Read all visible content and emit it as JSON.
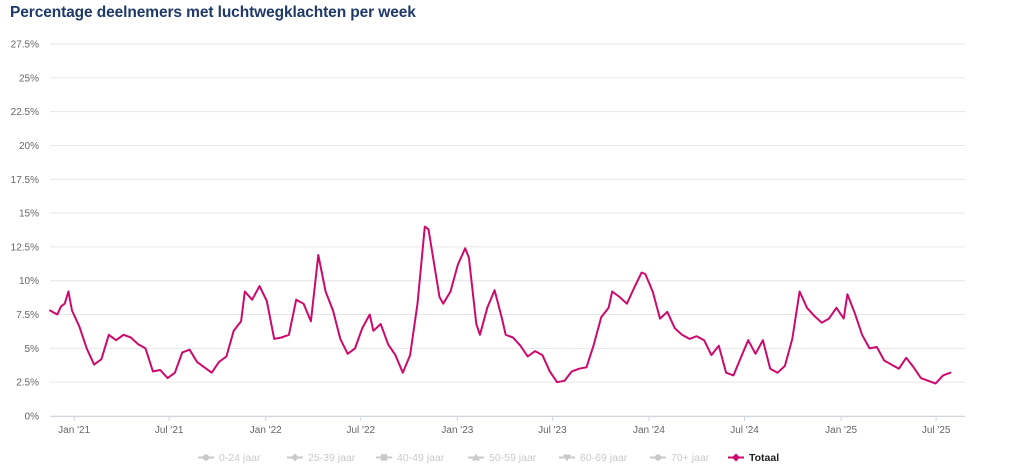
{
  "title": "Percentage deelnemers met luchtwegklachten per week",
  "colors": {
    "line": "#cc0a6e",
    "grid": "#e6e6e6",
    "axis_text": "#666666",
    "legend_inactive": "#c9c9c9",
    "legend_active": "#222222"
  },
  "legend": [
    {
      "label": "0-24 jaar",
      "marker": "circle",
      "active": false
    },
    {
      "label": "25-39 jaar",
      "marker": "diamond",
      "active": false
    },
    {
      "label": "40-49 jaar",
      "marker": "square",
      "active": false
    },
    {
      "label": "50-59 jaar",
      "marker": "triangle",
      "active": false
    },
    {
      "label": "60-69 jaar",
      "marker": "triangle-down",
      "active": false
    },
    {
      "label": "70+ jaar",
      "marker": "circle",
      "active": false
    },
    {
      "label": "Totaal",
      "marker": "diamond",
      "active": true
    }
  ],
  "chart_data": {
    "type": "line",
    "title": "Percentage deelnemers met luchtwegklachten per week",
    "xlabel": "",
    "ylabel": "",
    "ylim": [
      0,
      27.5
    ],
    "xlim": [
      "2020-11-16",
      "2025-08-25"
    ],
    "y_ticks": [
      "0%",
      "2.5%",
      "5%",
      "7.5%",
      "10%",
      "12.5%",
      "15%",
      "17.5%",
      "20%",
      "22.5%",
      "25%",
      "27.5%"
    ],
    "x_ticks": [
      {
        "label": "Jan '21",
        "date": "2021-01-01"
      },
      {
        "label": "Jul '21",
        "date": "2021-07-01"
      },
      {
        "label": "Jan '22",
        "date": "2022-01-01"
      },
      {
        "label": "Jul '22",
        "date": "2022-07-01"
      },
      {
        "label": "Jan '23",
        "date": "2023-01-01"
      },
      {
        "label": "Jul '23",
        "date": "2023-07-01"
      },
      {
        "label": "Jan '24",
        "date": "2024-01-01"
      },
      {
        "label": "Jul '24",
        "date": "2024-07-01"
      },
      {
        "label": "Jan '25",
        "date": "2025-01-01"
      },
      {
        "label": "Jul '25",
        "date": "2025-07-01"
      }
    ],
    "grid": true,
    "legend_position": "bottom",
    "series": [
      {
        "name": "Totaal",
        "points": [
          [
            "2020-11-16",
            7.8
          ],
          [
            "2020-11-30",
            7.5
          ],
          [
            "2020-12-07",
            8.1
          ],
          [
            "2020-12-14",
            8.3
          ],
          [
            "2020-12-21",
            9.2
          ],
          [
            "2020-12-28",
            7.8
          ],
          [
            "2021-01-11",
            6.6
          ],
          [
            "2021-01-25",
            5.0
          ],
          [
            "2021-02-08",
            3.8
          ],
          [
            "2021-02-22",
            4.2
          ],
          [
            "2021-03-08",
            6.0
          ],
          [
            "2021-03-22",
            5.6
          ],
          [
            "2021-04-05",
            6.0
          ],
          [
            "2021-04-19",
            5.8
          ],
          [
            "2021-05-03",
            5.3
          ],
          [
            "2021-05-17",
            5.0
          ],
          [
            "2021-05-31",
            3.3
          ],
          [
            "2021-06-14",
            3.4
          ],
          [
            "2021-06-28",
            2.8
          ],
          [
            "2021-07-12",
            3.2
          ],
          [
            "2021-07-26",
            4.7
          ],
          [
            "2021-08-09",
            4.9
          ],
          [
            "2021-08-23",
            4.0
          ],
          [
            "2021-09-06",
            3.6
          ],
          [
            "2021-09-20",
            3.2
          ],
          [
            "2021-10-04",
            4.0
          ],
          [
            "2021-10-18",
            4.4
          ],
          [
            "2021-11-01",
            6.3
          ],
          [
            "2021-11-15",
            7.0
          ],
          [
            "2021-11-22",
            9.2
          ],
          [
            "2021-12-06",
            8.6
          ],
          [
            "2021-12-20",
            9.6
          ],
          [
            "2022-01-03",
            8.5
          ],
          [
            "2022-01-17",
            5.7
          ],
          [
            "2022-01-31",
            5.8
          ],
          [
            "2022-02-14",
            6.0
          ],
          [
            "2022-02-28",
            8.6
          ],
          [
            "2022-03-14",
            8.3
          ],
          [
            "2022-03-28",
            7.0
          ],
          [
            "2022-04-11",
            11.9
          ],
          [
            "2022-04-25",
            9.2
          ],
          [
            "2022-05-09",
            7.8
          ],
          [
            "2022-05-23",
            5.7
          ],
          [
            "2022-06-06",
            4.6
          ],
          [
            "2022-06-20",
            5.0
          ],
          [
            "2022-07-04",
            6.5
          ],
          [
            "2022-07-18",
            7.5
          ],
          [
            "2022-07-25",
            6.3
          ],
          [
            "2022-08-08",
            6.8
          ],
          [
            "2022-08-22",
            5.3
          ],
          [
            "2022-09-05",
            4.5
          ],
          [
            "2022-09-19",
            3.2
          ],
          [
            "2022-10-03",
            4.5
          ],
          [
            "2022-10-17",
            8.3
          ],
          [
            "2022-10-31",
            14.0
          ],
          [
            "2022-11-07",
            13.8
          ],
          [
            "2022-11-28",
            8.8
          ],
          [
            "2022-12-05",
            8.3
          ],
          [
            "2022-12-19",
            9.2
          ],
          [
            "2023-01-02",
            11.2
          ],
          [
            "2023-01-16",
            12.4
          ],
          [
            "2023-01-23",
            11.7
          ],
          [
            "2023-02-06",
            6.8
          ],
          [
            "2023-02-13",
            6.0
          ],
          [
            "2023-02-27",
            8.0
          ],
          [
            "2023-03-13",
            9.3
          ],
          [
            "2023-03-27",
            7.2
          ],
          [
            "2023-04-03",
            6.0
          ],
          [
            "2023-04-17",
            5.8
          ],
          [
            "2023-05-01",
            5.2
          ],
          [
            "2023-05-15",
            4.4
          ],
          [
            "2023-05-29",
            4.8
          ],
          [
            "2023-06-12",
            4.5
          ],
          [
            "2023-06-26",
            3.3
          ],
          [
            "2023-07-10",
            2.5
          ],
          [
            "2023-07-24",
            2.6
          ],
          [
            "2023-08-07",
            3.3
          ],
          [
            "2023-08-21",
            3.5
          ],
          [
            "2023-09-04",
            3.6
          ],
          [
            "2023-09-18",
            5.3
          ],
          [
            "2023-10-02",
            7.3
          ],
          [
            "2023-10-16",
            8.0
          ],
          [
            "2023-10-23",
            9.2
          ],
          [
            "2023-11-06",
            8.8
          ],
          [
            "2023-11-20",
            8.3
          ],
          [
            "2023-12-04",
            9.5
          ],
          [
            "2023-12-18",
            10.6
          ],
          [
            "2023-12-25",
            10.5
          ],
          [
            "2024-01-08",
            9.2
          ],
          [
            "2024-01-22",
            7.2
          ],
          [
            "2024-02-05",
            7.7
          ],
          [
            "2024-02-19",
            6.5
          ],
          [
            "2024-03-04",
            6.0
          ],
          [
            "2024-03-18",
            5.7
          ],
          [
            "2024-04-01",
            5.9
          ],
          [
            "2024-04-15",
            5.6
          ],
          [
            "2024-04-29",
            4.5
          ],
          [
            "2024-05-13",
            5.2
          ],
          [
            "2024-05-27",
            3.2
          ],
          [
            "2024-06-10",
            3.0
          ],
          [
            "2024-06-24",
            4.3
          ],
          [
            "2024-07-08",
            5.6
          ],
          [
            "2024-07-22",
            4.6
          ],
          [
            "2024-08-05",
            5.6
          ],
          [
            "2024-08-19",
            3.5
          ],
          [
            "2024-09-02",
            3.2
          ],
          [
            "2024-09-16",
            3.7
          ],
          [
            "2024-09-30",
            5.7
          ],
          [
            "2024-10-14",
            9.2
          ],
          [
            "2024-10-28",
            8.0
          ],
          [
            "2024-11-11",
            7.4
          ],
          [
            "2024-11-25",
            6.9
          ],
          [
            "2024-12-09",
            7.2
          ],
          [
            "2024-12-23",
            8.0
          ],
          [
            "2025-01-06",
            7.2
          ],
          [
            "2025-01-13",
            9.0
          ],
          [
            "2025-01-27",
            7.6
          ],
          [
            "2025-02-10",
            6.0
          ],
          [
            "2025-02-24",
            5.0
          ],
          [
            "2025-03-10",
            5.1
          ],
          [
            "2025-03-24",
            4.1
          ],
          [
            "2025-04-07",
            3.8
          ],
          [
            "2025-04-21",
            3.5
          ],
          [
            "2025-05-05",
            4.3
          ],
          [
            "2025-05-19",
            3.6
          ],
          [
            "2025-06-02",
            2.8
          ],
          [
            "2025-06-16",
            2.6
          ],
          [
            "2025-06-30",
            2.4
          ],
          [
            "2025-07-14",
            3.0
          ],
          [
            "2025-07-28",
            3.2
          ]
        ]
      }
    ]
  }
}
